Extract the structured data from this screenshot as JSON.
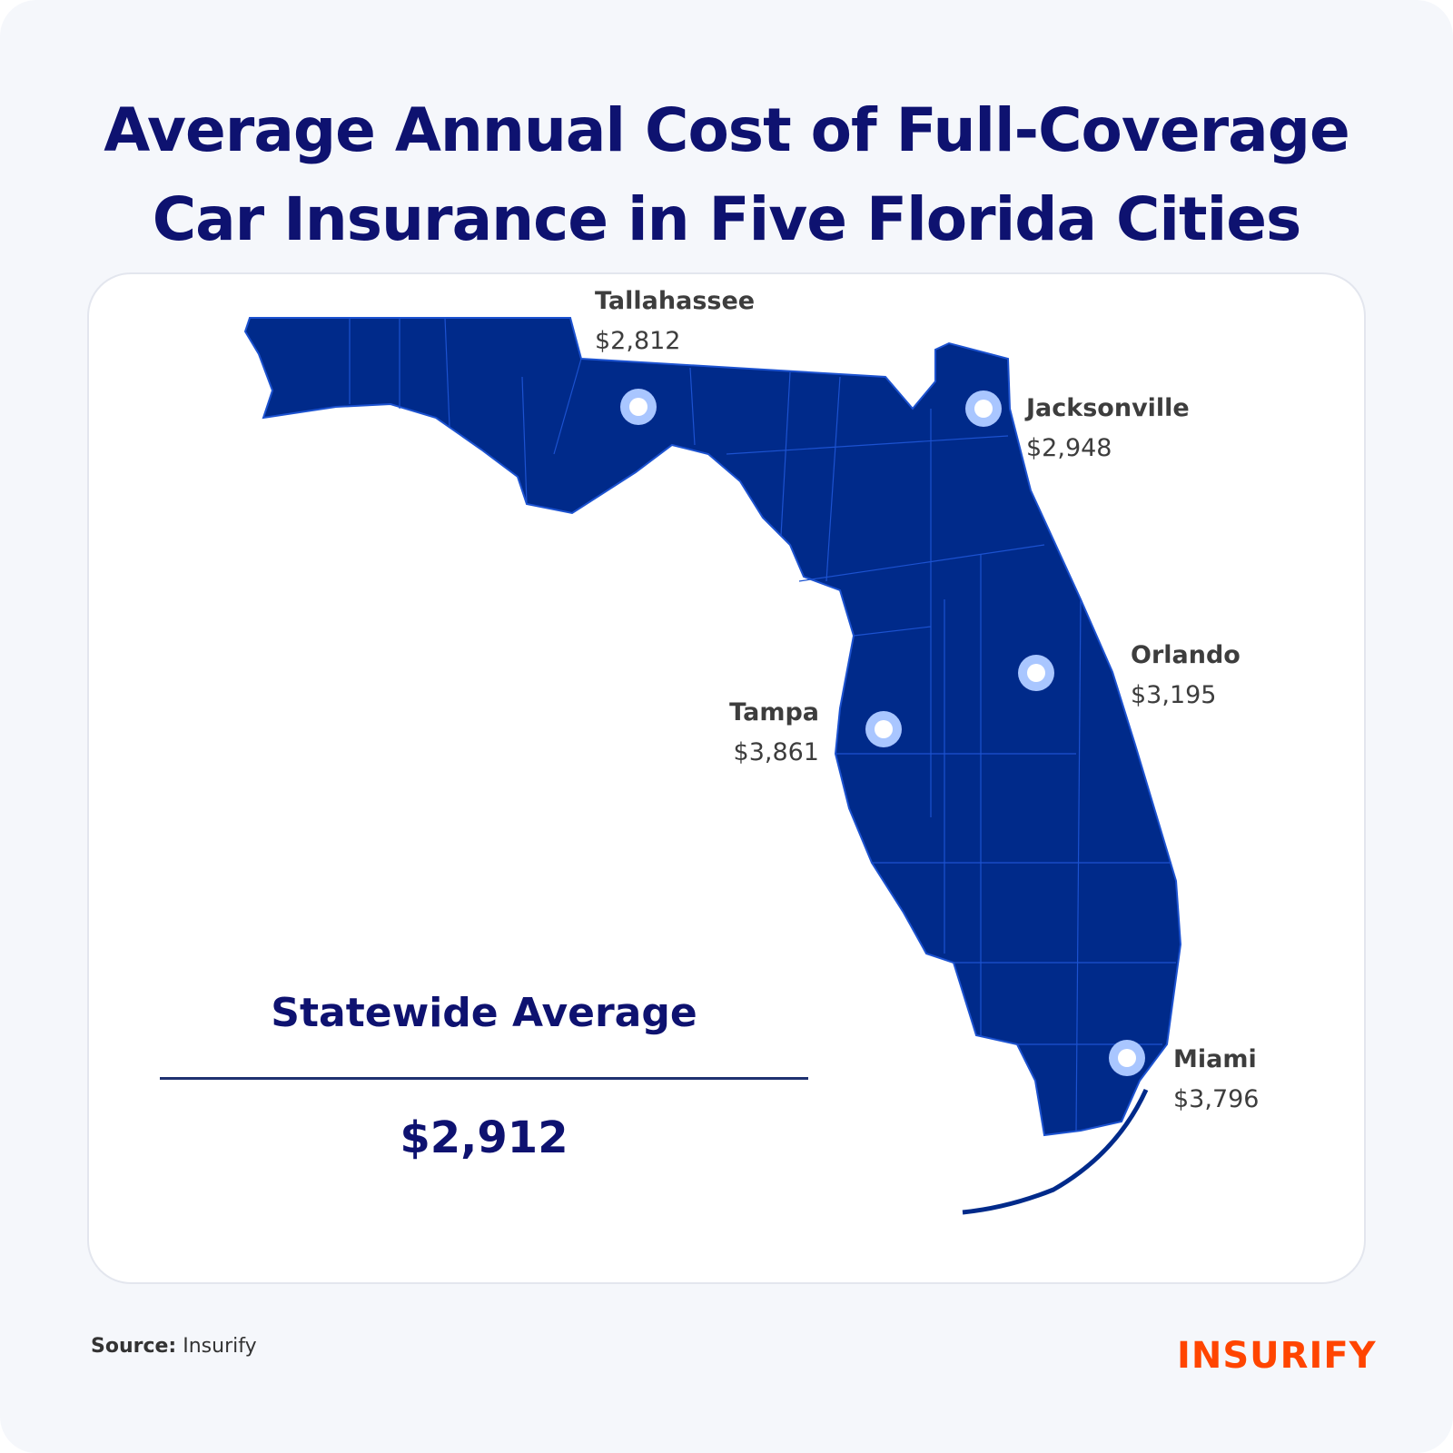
{
  "title_line1": "Average Annual Cost of Full-Coverage",
  "title_line2": "Car Insurance in Five Florida Cities",
  "cities": [
    {
      "name": "Tallahassee",
      "cost": "$2,812"
    },
    {
      "name": "Jacksonville",
      "cost": "$2,948"
    },
    {
      "name": "Orlando",
      "cost": "$3,195"
    },
    {
      "name": "Tampa",
      "cost": "$3,861"
    },
    {
      "name": "Miami",
      "cost": "$3,796"
    }
  ],
  "statewide": {
    "label": "Statewide Average",
    "value": "$2,912"
  },
  "source": {
    "label": "Source:",
    "value": "Insurify"
  },
  "logo": "INSURIFY",
  "colors": {
    "map": "#002a8a",
    "title": "#0e1270",
    "marker": "#a9c6ff",
    "logo": "#ff4500"
  }
}
